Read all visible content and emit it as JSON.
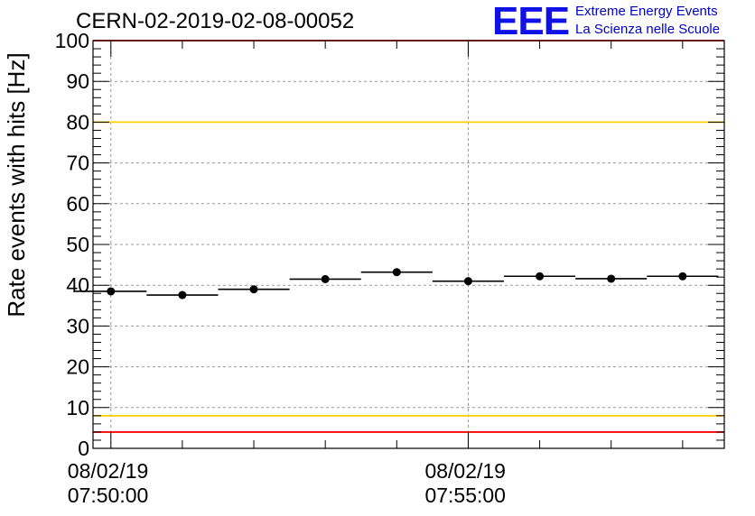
{
  "title": "CERN-02-2019-02-08-00052",
  "logo": {
    "mark": "EEE",
    "line1": "Extreme Energy Events",
    "line2": "La Scienza nelle Scuole",
    "color": "#1010e8"
  },
  "chart_data": {
    "type": "scatter",
    "title": "CERN-02-2019-02-08-00052",
    "ylabel": "Rate events with hits [Hz]",
    "xlabel": "",
    "ylim": [
      0,
      100
    ],
    "yticks": [
      "0",
      "10",
      "20",
      "30",
      "40",
      "50",
      "60",
      "70",
      "80",
      "90",
      "100"
    ],
    "xlim": [
      "08/02/19 07:49:45",
      "08/02/19 07:58:35"
    ],
    "xticks": [
      {
        "time": "08/02/19 07:50:00",
        "date": "08/02/19",
        "clock": "07:50:00"
      },
      {
        "time": "08/02/19 07:55:00",
        "date": "08/02/19",
        "clock": "07:55:00"
      }
    ],
    "grid": true,
    "bin_width_s": 60,
    "points": [
      {
        "x": "08/02/19 07:50:00",
        "y": 38.5
      },
      {
        "x": "08/02/19 07:51:00",
        "y": 37.6
      },
      {
        "x": "08/02/19 07:52:00",
        "y": 39.0
      },
      {
        "x": "08/02/19 07:53:00",
        "y": 41.5
      },
      {
        "x": "08/02/19 07:54:00",
        "y": 43.2
      },
      {
        "x": "08/02/19 07:55:00",
        "y": 41.0
      },
      {
        "x": "08/02/19 07:56:00",
        "y": 42.2
      },
      {
        "x": "08/02/19 07:57:00",
        "y": 41.6
      },
      {
        "x": "08/02/19 07:58:00",
        "y": 42.2
      }
    ],
    "reference_lines": [
      {
        "y": 100,
        "color": "#ff0000"
      },
      {
        "y": 4,
        "color": "#ff0000"
      },
      {
        "y": 80,
        "color": "#ffcc00"
      },
      {
        "y": 8,
        "color": "#ffcc00"
      }
    ]
  }
}
